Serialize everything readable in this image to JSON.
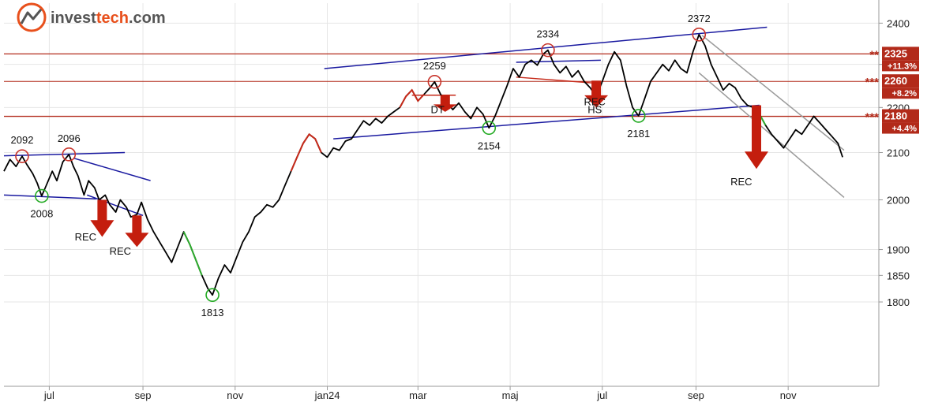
{
  "brand": {
    "name_a": "invest",
    "name_b": "tech",
    "name_c": ".com"
  },
  "colors": {
    "price": "#000000",
    "up": "#2eaa2e",
    "down": "#c62a1a",
    "level": "#b22a1a",
    "channel_blue": "#1a1aa0",
    "channel_gray": "#9a9a9a",
    "grid": "#e6e6e6",
    "arrow": "#c41e0e",
    "circle_red": "#c8332a",
    "circle_green": "#22aa22",
    "brand_orange": "#e8501c",
    "brand_gray": "#555555"
  },
  "chart_data": {
    "type": "line",
    "title": "",
    "xlabel": "",
    "ylabel": "",
    "y_scale": "log",
    "ylim": [
      1650,
      2450
    ],
    "y_ticks": [
      1800,
      1850,
      1900,
      2000,
      2100,
      2200,
      2300,
      2400
    ],
    "x_range": [
      "2023-06-01",
      "2024-12-31"
    ],
    "x_ticks": [
      {
        "date": "2023-07-01",
        "label": "jul"
      },
      {
        "date": "2023-09-01",
        "label": "sep"
      },
      {
        "date": "2023-11-01",
        "label": "nov"
      },
      {
        "date": "2024-01-01",
        "label": "jan24"
      },
      {
        "date": "2024-03-01",
        "label": "mar"
      },
      {
        "date": "2024-05-01",
        "label": "maj"
      },
      {
        "date": "2024-07-01",
        "label": "jul"
      },
      {
        "date": "2024-09-01",
        "label": "sep"
      },
      {
        "date": "2024-11-01",
        "label": "nov"
      }
    ],
    "series": [
      {
        "points": [
          [
            "2023-06-01",
            2060
          ],
          [
            "2023-06-05",
            2085
          ],
          [
            "2023-06-09",
            2070
          ],
          [
            "2023-06-13",
            2092
          ],
          [
            "2023-06-16",
            2075
          ],
          [
            "2023-06-20",
            2055
          ],
          [
            "2023-06-23",
            2035
          ],
          [
            "2023-06-26",
            2008
          ],
          [
            "2023-06-29",
            2030
          ],
          [
            "2023-07-03",
            2060
          ],
          [
            "2023-07-06",
            2040
          ],
          [
            "2023-07-10",
            2080
          ],
          [
            "2023-07-14",
            2096
          ],
          [
            "2023-07-17",
            2070
          ],
          [
            "2023-07-20",
            2050
          ],
          [
            "2023-07-24",
            2010
          ],
          [
            "2023-07-27",
            2040
          ],
          [
            "2023-07-31",
            2025
          ],
          [
            "2023-08-03",
            2000
          ],
          [
            "2023-08-07",
            2010
          ],
          [
            "2023-08-10",
            1990
          ],
          [
            "2023-08-14",
            1975
          ],
          [
            "2023-08-17",
            2000
          ],
          [
            "2023-08-21",
            1985
          ],
          [
            "2023-08-24",
            1965
          ],
          [
            "2023-08-28",
            1970
          ],
          [
            "2023-08-31",
            1995
          ],
          [
            "2023-09-04",
            1960
          ],
          [
            "2023-09-08",
            1935
          ],
          [
            "2023-09-12",
            1915
          ],
          [
            "2023-09-16",
            1895
          ],
          [
            "2023-09-20",
            1875
          ],
          [
            "2023-09-24",
            1905
          ],
          [
            "2023-09-28",
            1935
          ],
          [
            "2023-10-02",
            1910
          ],
          [
            "2023-10-06",
            1880
          ],
          [
            "2023-10-10",
            1850
          ],
          [
            "2023-10-14",
            1825
          ],
          [
            "2023-10-17",
            1813
          ],
          [
            "2023-10-21",
            1845
          ],
          [
            "2023-10-25",
            1870
          ],
          [
            "2023-10-29",
            1855
          ],
          [
            "2023-11-02",
            1885
          ],
          [
            "2023-11-06",
            1915
          ],
          [
            "2023-11-10",
            1935
          ],
          [
            "2023-11-14",
            1965
          ],
          [
            "2023-11-18",
            1975
          ],
          [
            "2023-11-22",
            1990
          ],
          [
            "2023-11-26",
            1985
          ],
          [
            "2023-11-30",
            2000
          ],
          [
            "2023-12-04",
            2030
          ],
          [
            "2023-12-08",
            2060
          ],
          [
            "2023-12-12",
            2090
          ],
          [
            "2023-12-16",
            2120
          ],
          [
            "2023-12-20",
            2140
          ],
          [
            "2023-12-24",
            2130
          ],
          [
            "2023-12-28",
            2100
          ],
          [
            "2024-01-01",
            2090
          ],
          [
            "2024-01-05",
            2110
          ],
          [
            "2024-01-09",
            2105
          ],
          [
            "2024-01-13",
            2125
          ],
          [
            "2024-01-17",
            2130
          ],
          [
            "2024-01-21",
            2150
          ],
          [
            "2024-01-25",
            2170
          ],
          [
            "2024-01-29",
            2160
          ],
          [
            "2024-02-02",
            2175
          ],
          [
            "2024-02-06",
            2165
          ],
          [
            "2024-02-10",
            2180
          ],
          [
            "2024-02-14",
            2190
          ],
          [
            "2024-02-18",
            2200
          ],
          [
            "2024-02-22",
            2225
          ],
          [
            "2024-02-26",
            2240
          ],
          [
            "2024-03-01",
            2215
          ],
          [
            "2024-03-05",
            2230
          ],
          [
            "2024-03-09",
            2245
          ],
          [
            "2024-03-12",
            2259
          ],
          [
            "2024-03-16",
            2230
          ],
          [
            "2024-03-20",
            2215
          ],
          [
            "2024-03-24",
            2195
          ],
          [
            "2024-03-28",
            2210
          ],
          [
            "2024-04-01",
            2190
          ],
          [
            "2024-04-05",
            2175
          ],
          [
            "2024-04-09",
            2200
          ],
          [
            "2024-04-13",
            2185
          ],
          [
            "2024-04-17",
            2154
          ],
          [
            "2024-04-21",
            2180
          ],
          [
            "2024-04-25",
            2215
          ],
          [
            "2024-04-29",
            2250
          ],
          [
            "2024-05-03",
            2290
          ],
          [
            "2024-05-07",
            2270
          ],
          [
            "2024-05-11",
            2300
          ],
          [
            "2024-05-15",
            2310
          ],
          [
            "2024-05-19",
            2298
          ],
          [
            "2024-05-23",
            2325
          ],
          [
            "2024-05-26",
            2334
          ],
          [
            "2024-05-30",
            2300
          ],
          [
            "2024-06-03",
            2280
          ],
          [
            "2024-06-07",
            2295
          ],
          [
            "2024-06-11",
            2270
          ],
          [
            "2024-06-15",
            2285
          ],
          [
            "2024-06-19",
            2260
          ],
          [
            "2024-06-23",
            2245
          ],
          [
            "2024-06-27",
            2225
          ],
          [
            "2024-07-01",
            2260
          ],
          [
            "2024-07-05",
            2300
          ],
          [
            "2024-07-09",
            2330
          ],
          [
            "2024-07-13",
            2310
          ],
          [
            "2024-07-17",
            2250
          ],
          [
            "2024-07-21",
            2200
          ],
          [
            "2024-07-25",
            2181
          ],
          [
            "2024-07-29",
            2220
          ],
          [
            "2024-08-02",
            2260
          ],
          [
            "2024-08-06",
            2280
          ],
          [
            "2024-08-10",
            2300
          ],
          [
            "2024-08-14",
            2285
          ],
          [
            "2024-08-18",
            2310
          ],
          [
            "2024-08-22",
            2290
          ],
          [
            "2024-08-26",
            2280
          ],
          [
            "2024-08-30",
            2330
          ],
          [
            "2024-09-03",
            2372
          ],
          [
            "2024-09-07",
            2345
          ],
          [
            "2024-09-11",
            2300
          ],
          [
            "2024-09-15",
            2270
          ],
          [
            "2024-09-19",
            2240
          ],
          [
            "2024-09-23",
            2255
          ],
          [
            "2024-09-27",
            2245
          ],
          [
            "2024-10-01",
            2220
          ],
          [
            "2024-10-05",
            2205
          ],
          [
            "2024-10-09",
            2200
          ],
          [
            "2024-10-13",
            2185
          ],
          [
            "2024-10-17",
            2160
          ],
          [
            "2024-10-21",
            2140
          ],
          [
            "2024-10-25",
            2125
          ],
          [
            "2024-10-29",
            2110
          ],
          [
            "2024-11-02",
            2130
          ],
          [
            "2024-11-06",
            2150
          ],
          [
            "2024-11-10",
            2140
          ],
          [
            "2024-11-14",
            2160
          ],
          [
            "2024-11-18",
            2180
          ],
          [
            "2024-11-22",
            2165
          ],
          [
            "2024-11-26",
            2150
          ],
          [
            "2024-11-30",
            2135
          ],
          [
            "2024-12-04",
            2120
          ],
          [
            "2024-12-07",
            2090
          ]
        ]
      }
    ],
    "price_segments": [
      {
        "from": "2023-09-26",
        "to": "2023-10-12",
        "kind": "up"
      },
      {
        "from": "2023-12-08",
        "to": "2023-12-28",
        "kind": "down"
      },
      {
        "from": "2024-02-18",
        "to": "2024-03-05",
        "kind": "down"
      },
      {
        "from": "2024-10-08",
        "to": "2024-10-20",
        "kind": "up"
      }
    ],
    "levels": [
      {
        "value": 2325,
        "label": "2325",
        "pct": "+11.3%",
        "stars": "**"
      },
      {
        "value": 2260,
        "label": "2260",
        "pct": "+8.2%",
        "stars": "***"
      },
      {
        "value": 2180,
        "label": "2180",
        "pct": "+4.4%",
        "stars": "***"
      }
    ],
    "trend_lines": [
      {
        "kind": "blue",
        "from": [
          "2023-06-01",
          2093
        ],
        "to": [
          "2023-08-20",
          2100
        ]
      },
      {
        "kind": "blue",
        "from": [
          "2023-06-01",
          2010
        ],
        "to": [
          "2023-08-01",
          2002
        ]
      },
      {
        "kind": "blue",
        "from": [
          "2023-07-17",
          2088
        ],
        "to": [
          "2023-09-06",
          2040
        ]
      },
      {
        "kind": "blue",
        "from": [
          "2023-07-26",
          2010
        ],
        "to": [
          "2023-09-01",
          1968
        ]
      },
      {
        "kind": "blue",
        "from": [
          "2024-01-05",
          2130
        ],
        "to": [
          "2024-10-13",
          2205
        ]
      },
      {
        "kind": "blue",
        "from": [
          "2023-12-30",
          2290
        ],
        "to": [
          "2024-10-18",
          2390
        ]
      },
      {
        "kind": "blue",
        "from": [
          "2024-05-05",
          2305
        ],
        "to": [
          "2024-06-30",
          2310
        ]
      },
      {
        "kind": "red",
        "from": [
          "2024-05-05",
          2270
        ],
        "to": [
          "2024-06-30",
          2255
        ]
      },
      {
        "kind": "red",
        "from": [
          "2024-02-26",
          2228
        ],
        "to": [
          "2024-03-26",
          2228
        ]
      },
      {
        "kind": "gray",
        "from": [
          "2024-09-05",
          2370
        ],
        "to": [
          "2024-12-08",
          2105
        ]
      },
      {
        "kind": "gray",
        "from": [
          "2024-09-03",
          2280
        ],
        "to": [
          "2024-12-08",
          2005
        ]
      }
    ],
    "extreme_points": [
      {
        "date": "2023-06-13",
        "value": 2092,
        "label": "2092",
        "kind": "top"
      },
      {
        "date": "2023-07-14",
        "value": 2096,
        "label": "2096",
        "kind": "top"
      },
      {
        "date": "2023-06-26",
        "value": 2008,
        "label": "2008",
        "kind": "bottom"
      },
      {
        "date": "2023-10-17",
        "value": 1813,
        "label": "1813",
        "kind": "bottom"
      },
      {
        "date": "2024-03-12",
        "value": 2259,
        "label": "2259",
        "kind": "top"
      },
      {
        "date": "2024-04-17",
        "value": 2154,
        "label": "2154",
        "kind": "bottom"
      },
      {
        "date": "2024-05-26",
        "value": 2334,
        "label": "2334",
        "kind": "top"
      },
      {
        "date": "2024-07-25",
        "value": 2181,
        "label": "2181",
        "kind": "bottom"
      },
      {
        "date": "2024-09-03",
        "value": 2372,
        "label": "2372",
        "kind": "top"
      }
    ],
    "signals": [
      {
        "date": "2023-08-05",
        "top": 2000,
        "bottom": 1925,
        "label": "REC",
        "label_value": 1918,
        "label_date": "2023-07-25"
      },
      {
        "date": "2023-08-28",
        "top": 1968,
        "bottom": 1905,
        "label": "REC",
        "label_value": 1890,
        "label_date": "2023-08-17"
      },
      {
        "date": "2024-03-19",
        "top": 2228,
        "bottom": 2190,
        "label": "DT",
        "label_value": 2187,
        "label_date": "2024-03-14"
      },
      {
        "date": "2024-06-27",
        "top": 2262,
        "bottom": 2200,
        "label": "REC",
        "label_value": 2205,
        "label_date": "2024-06-26",
        "label2": "HS",
        "label2_value": 2187,
        "label2_date": "2024-06-26"
      },
      {
        "date": "2024-10-11",
        "top": 2205,
        "bottom": 2065,
        "label": "REC",
        "label_value": 2030,
        "label_date": "2024-10-01"
      }
    ]
  }
}
